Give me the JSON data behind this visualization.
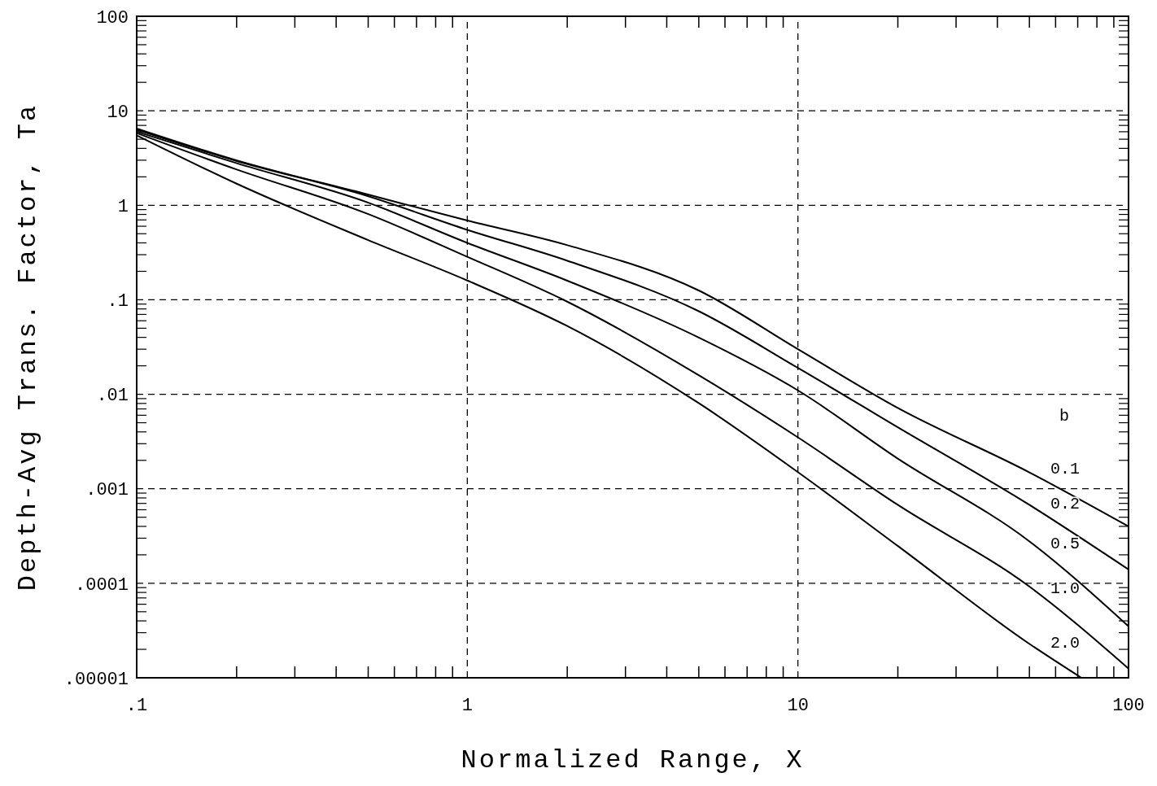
{
  "chart_data": {
    "type": "line",
    "xlabel": "Normalized Range, X",
    "ylabel": "Depth-Avg Trans. Factor, Ta",
    "legend_title": "b",
    "legend": "right",
    "log": "xy",
    "grid": true,
    "line_style": "solid",
    "marker": "none",
    "x": [
      0.1,
      0.2,
      0.5,
      1,
      2,
      5,
      10,
      20,
      50,
      100
    ],
    "series": [
      {
        "name": "0.1",
        "color": "#000000",
        "values": [
          6.5,
          3.0,
          1.3,
          0.69,
          0.38,
          0.126,
          0.03,
          0.0072,
          0.0015,
          0.0004
        ]
      },
      {
        "name": "0.2",
        "color": "#000000",
        "values": [
          6.3,
          2.95,
          1.25,
          0.55,
          0.26,
          0.076,
          0.019,
          0.0045,
          0.00068,
          0.00014
        ]
      },
      {
        "name": "0.5",
        "color": "#000000",
        "values": [
          6.0,
          2.8,
          1.07,
          0.4,
          0.16,
          0.04,
          0.011,
          0.0021,
          0.00028,
          3.5e-05
        ]
      },
      {
        "name": "1.0",
        "color": "#000000",
        "values": [
          5.8,
          2.4,
          0.81,
          0.285,
          0.096,
          0.016,
          0.0035,
          0.00068,
          9.3e-05,
          1.25e-05
        ]
      },
      {
        "name": "2.0",
        "color": "#000000",
        "x": [
          0.1,
          0.2,
          0.5,
          1,
          2,
          5,
          10,
          20,
          50,
          72
        ],
        "values": [
          5.5,
          1.7,
          0.43,
          0.16,
          0.053,
          0.0081,
          0.0015,
          0.00025,
          2.3e-05,
          1e-05
        ]
      }
    ],
    "xlim": [
      0.1,
      100
    ],
    "ylim": [
      1e-05,
      100
    ],
    "xticks": [
      {
        "value": 0.1,
        "label": ".1"
      },
      {
        "value": 0.2,
        "label": null
      },
      {
        "value": 0.3,
        "label": null
      },
      {
        "value": 0.4,
        "label": null
      },
      {
        "value": 0.5,
        "label": null
      },
      {
        "value": 0.6,
        "label": null
      },
      {
        "value": 0.7,
        "label": null
      },
      {
        "value": 0.8,
        "label": null
      },
      {
        "value": 0.9,
        "label": null
      },
      1,
      {
        "value": 2,
        "label": null
      },
      {
        "value": 3,
        "label": null
      },
      {
        "value": 4,
        "label": null
      },
      {
        "value": 5,
        "label": null
      },
      {
        "value": 6,
        "label": null
      },
      {
        "value": 7,
        "label": null
      },
      {
        "value": 8,
        "label": null
      },
      {
        "value": 9,
        "label": null
      },
      10,
      {
        "value": 20,
        "label": null
      },
      {
        "value": 30,
        "label": null
      },
      {
        "value": 40,
        "label": null
      },
      {
        "value": 50,
        "label": null
      },
      {
        "value": 60,
        "label": null
      },
      {
        "value": 70,
        "label": null
      },
      {
        "value": 80,
        "label": null
      },
      {
        "value": 90,
        "label": null
      },
      100
    ],
    "yticks": [
      {
        "value": 1e-05,
        "label": ".00001"
      },
      {
        "value": 2e-05,
        "label": null
      },
      {
        "value": 3e-05,
        "label": null
      },
      {
        "value": 4e-05,
        "label": null
      },
      {
        "value": 5e-05,
        "label": null
      },
      {
        "value": 6e-05,
        "label": null
      },
      {
        "value": 7e-05,
        "label": null
      },
      {
        "value": 8e-05,
        "label": null
      },
      {
        "value": 9e-05,
        "label": null
      },
      {
        "value": 0.0001,
        "label": ".0001"
      },
      {
        "value": 0.0002,
        "label": null
      },
      {
        "value": 0.0003,
        "label": null
      },
      {
        "value": 0.0004,
        "label": null
      },
      {
        "value": 0.0005,
        "label": null
      },
      {
        "value": 0.0006,
        "label": null
      },
      {
        "value": 0.0007,
        "label": null
      },
      {
        "value": 0.0008,
        "label": null
      },
      {
        "value": 0.0009,
        "label": null
      },
      {
        "value": 0.001,
        "label": ".001"
      },
      {
        "value": 0.002,
        "label": null
      },
      {
        "value": 0.003,
        "label": null
      },
      {
        "value": 0.004,
        "label": null
      },
      {
        "value": 0.005,
        "label": null
      },
      {
        "value": 0.006,
        "label": null
      },
      {
        "value": 0.007,
        "label": null
      },
      {
        "value": 0.008,
        "label": null
      },
      {
        "value": 0.009,
        "label": null
      },
      {
        "value": 0.01,
        "label": ".01"
      },
      {
        "value": 0.02,
        "label": null
      },
      {
        "value": 0.03,
        "label": null
      },
      {
        "value": 0.04,
        "label": null
      },
      {
        "value": 0.05,
        "label": null
      },
      {
        "value": 0.06,
        "label": null
      },
      {
        "value": 0.07,
        "label": null
      },
      {
        "value": 0.08,
        "label": null
      },
      {
        "value": 0.09,
        "label": null
      },
      {
        "value": 0.1,
        "label": ".1"
      },
      {
        "value": 0.2,
        "label": null
      },
      {
        "value": 0.3,
        "label": null
      },
      {
        "value": 0.4,
        "label": null
      },
      {
        "value": 0.5,
        "label": null
      },
      {
        "value": 0.6,
        "label": null
      },
      {
        "value": 0.7,
        "label": null
      },
      {
        "value": 0.8,
        "label": null
      },
      {
        "value": 0.9,
        "label": null
      },
      1,
      {
        "value": 2,
        "label": null
      },
      {
        "value": 3,
        "label": null
      },
      {
        "value": 4,
        "label": null
      },
      {
        "value": 5,
        "label": null
      },
      {
        "value": 6,
        "label": null
      },
      {
        "value": 7,
        "label": null
      },
      {
        "value": 8,
        "label": null
      },
      {
        "value": 9,
        "label": null
      },
      10,
      {
        "value": 20,
        "label": null
      },
      {
        "value": 30,
        "label": null
      },
      {
        "value": 40,
        "label": null
      },
      {
        "value": 50,
        "label": null
      },
      {
        "value": 60,
        "label": null
      },
      {
        "value": 70,
        "label": null
      },
      {
        "value": 80,
        "label": null
      },
      {
        "value": 90,
        "label": null
      },
      100
    ]
  }
}
